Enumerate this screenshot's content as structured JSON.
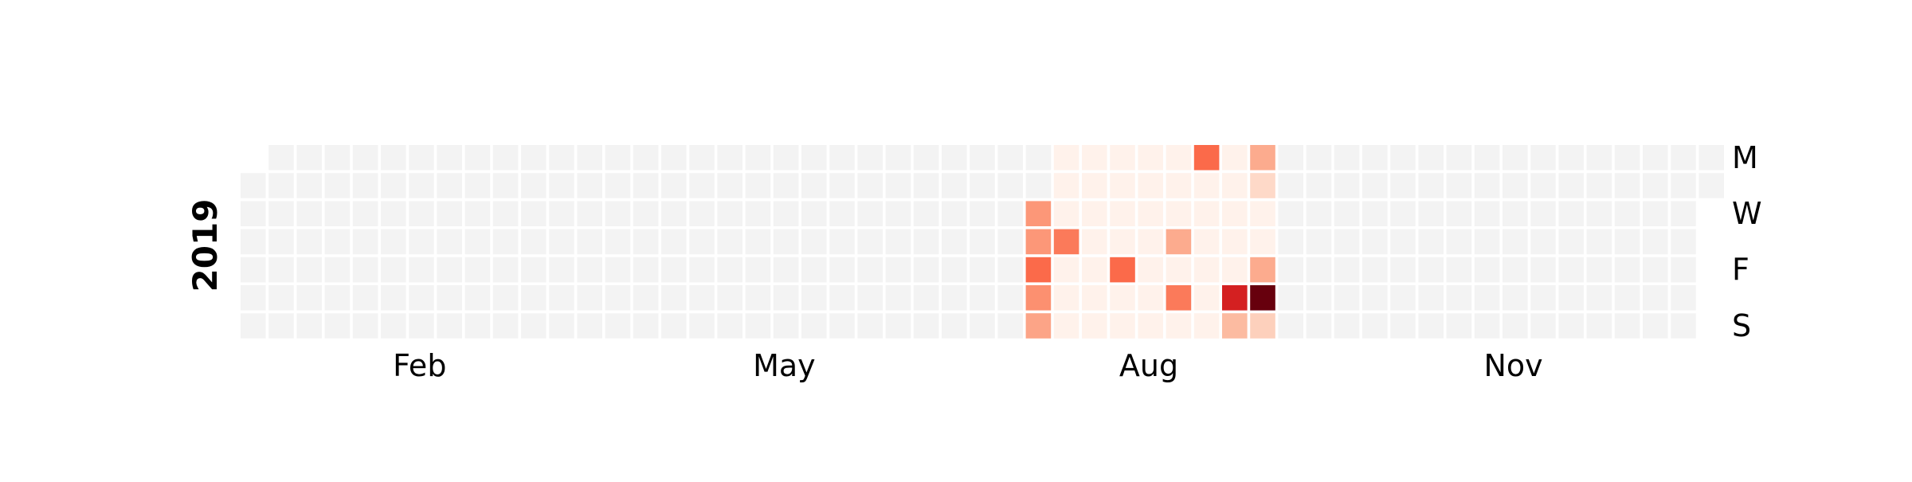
{
  "chart_data": {
    "type": "heatmap",
    "title": "",
    "year": "2019",
    "month_labels": [
      "Feb",
      "May",
      "Aug",
      "Nov"
    ],
    "day_labels": [
      "M",
      "W",
      "F",
      "S"
    ],
    "grid": false,
    "colorscale": "Reds",
    "empty_color": "#f3f3f3",
    "nonzero_cells": [
      {
        "week": 28,
        "day": 2,
        "level": 0.36
      },
      {
        "week": 28,
        "day": 3,
        "level": 0.36
      },
      {
        "week": 28,
        "day": 4,
        "level": 0.5
      },
      {
        "week": 28,
        "day": 5,
        "level": 0.38
      },
      {
        "week": 28,
        "day": 6,
        "level": 0.32
      },
      {
        "week": 29,
        "day": 3,
        "level": 0.45
      },
      {
        "week": 31,
        "day": 4,
        "level": 0.5
      },
      {
        "week": 33,
        "day": 3,
        "level": 0.3
      },
      {
        "week": 33,
        "day": 5,
        "level": 0.45
      },
      {
        "week": 34,
        "day": 0,
        "level": 0.5
      },
      {
        "week": 35,
        "day": 5,
        "level": 0.72
      },
      {
        "week": 35,
        "day": 6,
        "level": 0.25
      },
      {
        "week": 36,
        "day": 0,
        "level": 0.3
      },
      {
        "week": 36,
        "day": 1,
        "level": 0.15
      },
      {
        "week": 36,
        "day": 4,
        "level": 0.3
      },
      {
        "week": 36,
        "day": 5,
        "level": 1.0
      },
      {
        "week": 36,
        "day": 6,
        "level": 0.18
      }
    ]
  }
}
